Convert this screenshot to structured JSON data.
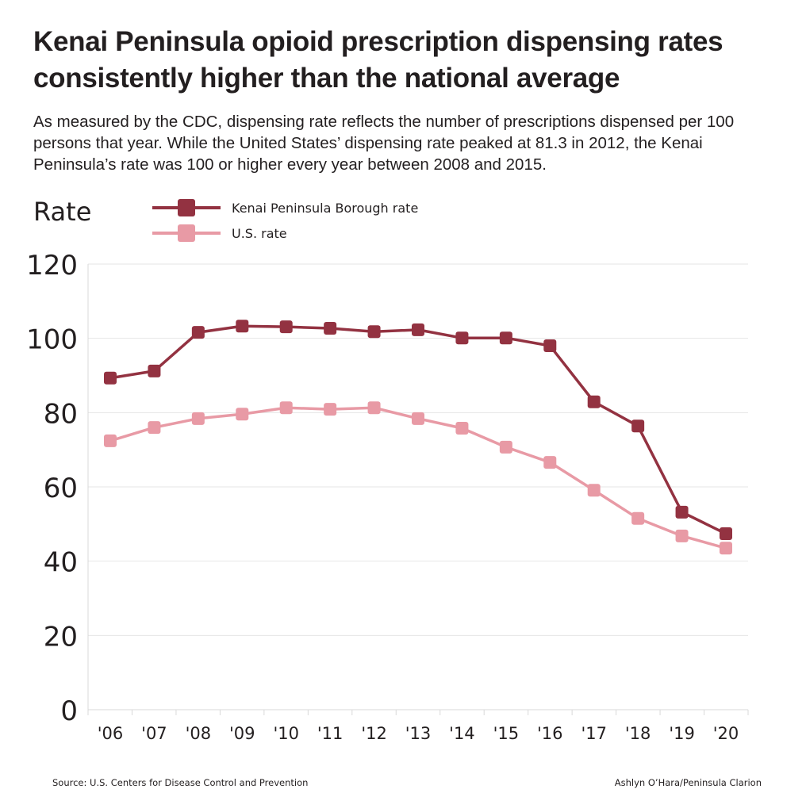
{
  "chart_data": {
    "type": "line",
    "title": "Kenai Peninsula opioid prescription dispensing rates consistently higher than the national average",
    "subtitle": "As measured by the CDC, dispensing rate reflects the number of prescriptions dispensed per 100 persons that year. While the United States’ dispensing rate peaked at 81.3 in 2012, the Kenai Peninsula’s rate was 100 or higher every year between 2008 and 2015.",
    "ylabel": "Rate",
    "xlabel": "",
    "categories": [
      "'06",
      "'07",
      "'08",
      "'09",
      "'10",
      "'11",
      "'12",
      "'13",
      "'14",
      "'15",
      "'16",
      "'17",
      "'18",
      "'19",
      "'20"
    ],
    "ylim": [
      0,
      120
    ],
    "yticks": [
      0,
      20,
      40,
      60,
      80,
      100,
      120
    ],
    "grid": true,
    "legend_position": "top-left",
    "series": [
      {
        "name": "Kenai Peninsula Borough rate",
        "color": "#933241",
        "values": [
          89.3,
          91.2,
          101.6,
          103.3,
          103.1,
          102.7,
          101.8,
          102.3,
          100.1,
          100.1,
          98.0,
          82.9,
          76.4,
          53.2,
          47.4
        ]
      },
      {
        "name": "U.S. rate",
        "color": "#e89aa5",
        "values": [
          72.4,
          76.0,
          78.4,
          79.6,
          81.3,
          80.9,
          81.3,
          78.4,
          75.8,
          70.7,
          66.6,
          59.1,
          51.5,
          46.8,
          43.5
        ]
      }
    ]
  },
  "footer": {
    "source": "Source: U.S. Centers for Disease Control and Prevention",
    "credit": "Ashlyn O’Hara/Peninsula Clarion"
  }
}
